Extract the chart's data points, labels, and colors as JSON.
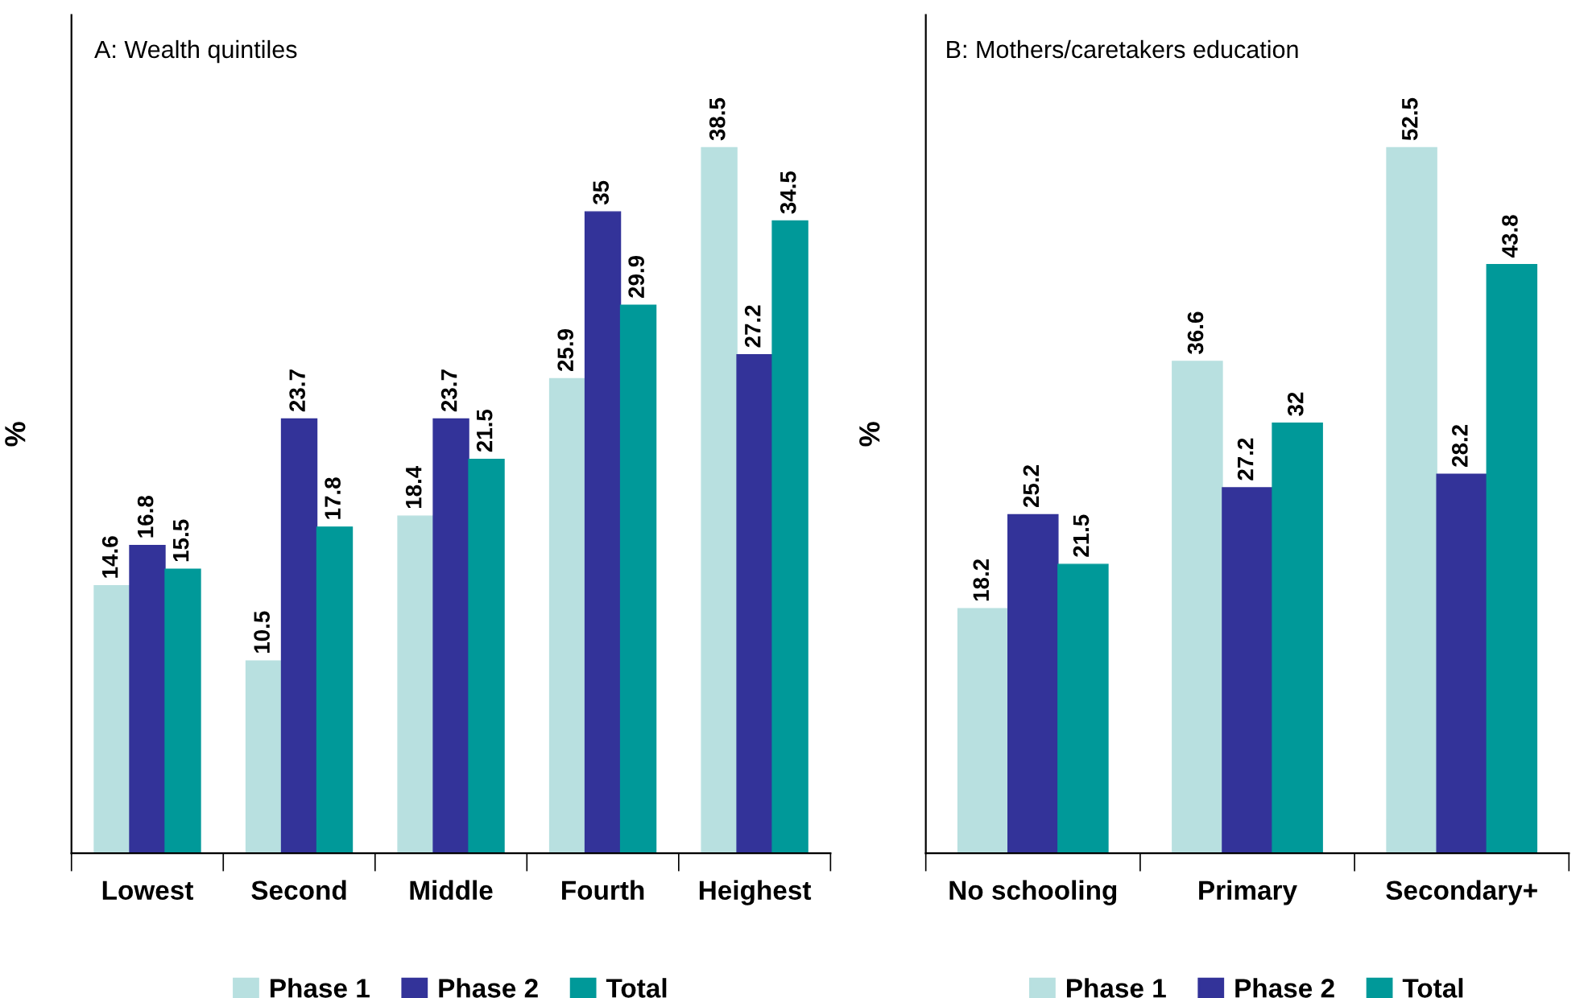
{
  "chart_data": [
    {
      "type": "bar",
      "title": "A: Wealth quintiles",
      "ylabel": "%",
      "categories": [
        "Lowest",
        "Second",
        "Middle",
        "Fourth",
        "Heighest"
      ],
      "series": [
        {
          "name": "Phase 1",
          "color": "#b8e0e0",
          "values": [
            14.6,
            10.5,
            18.4,
            25.9,
            38.5
          ]
        },
        {
          "name": "Phase 2",
          "color": "#333399",
          "values": [
            16.8,
            23.7,
            23.7,
            35,
            27.2
          ]
        },
        {
          "name": "Total",
          "color": "#009999",
          "values": [
            15.5,
            17.8,
            21.5,
            29.9,
            34.5
          ]
        }
      ],
      "data_labels": true,
      "legend": "bottom",
      "tick_labels": "x",
      "grid": false
    },
    {
      "type": "bar",
      "title": "B: Mothers/caretakers education",
      "ylabel": "%",
      "categories": [
        "No schooling",
        "Primary",
        "Secondary+"
      ],
      "series": [
        {
          "name": "Phase 1",
          "color": "#b8e0e0",
          "values": [
            18.2,
            36.6,
            52.5
          ]
        },
        {
          "name": "Phase 2",
          "color": "#333399",
          "values": [
            25.2,
            27.2,
            28.2
          ]
        },
        {
          "name": "Total",
          "color": "#009999",
          "values": [
            21.5,
            32,
            43.8
          ]
        }
      ],
      "data_labels": true,
      "legend": "bottom",
      "tick_labels": "x",
      "grid": false
    }
  ]
}
